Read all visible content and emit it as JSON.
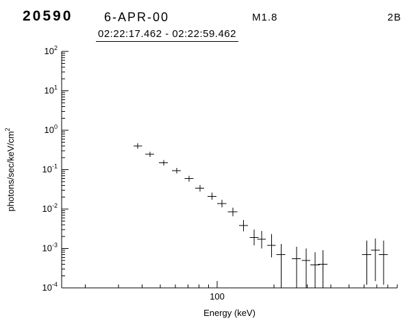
{
  "header": {
    "flare_number": "20590",
    "date": "6-APR-00",
    "xray_class": "M1.8",
    "optical_class": "2B",
    "time_range": "02:22:17.462  -  02:22:59.462"
  },
  "chart_data": {
    "type": "scatter",
    "subtype": "photon-spectrum-with-error-bars",
    "xlabel": "Energy (keV)",
    "ylabel_base": "photons/sec/keV/cm",
    "ylabel_exponent": "2",
    "x_scale": "log",
    "y_scale": "log",
    "xlim": [
      15,
      900
    ],
    "ylim": [
      0.0001,
      100
    ],
    "x_major_ticks": [
      100
    ],
    "x_major_tick_labels": [
      "100"
    ],
    "y_major_tick_exponents": [
      2,
      1,
      0,
      -1,
      -2,
      -3,
      -4
    ],
    "grid": false,
    "axis_color": "#000000",
    "marker_color": "#000000",
    "points": [
      {
        "e": 38,
        "de": 2,
        "f": 0.4,
        "flo": 0.34,
        "fhi": 0.47
      },
      {
        "e": 44,
        "de": 2.4,
        "f": 0.245,
        "flo": 0.21,
        "fhi": 0.285
      },
      {
        "e": 52,
        "de": 2.8,
        "f": 0.15,
        "flo": 0.128,
        "fhi": 0.175
      },
      {
        "e": 61,
        "de": 3.3,
        "f": 0.095,
        "flo": 0.081,
        "fhi": 0.111
      },
      {
        "e": 71,
        "de": 3.8,
        "f": 0.059,
        "flo": 0.05,
        "fhi": 0.07
      },
      {
        "e": 81,
        "de": 4.4,
        "f": 0.034,
        "flo": 0.028,
        "fhi": 0.041
      },
      {
        "e": 94,
        "de": 5,
        "f": 0.021,
        "flo": 0.017,
        "fhi": 0.026
      },
      {
        "e": 106,
        "de": 6,
        "f": 0.0138,
        "flo": 0.011,
        "fhi": 0.0172
      },
      {
        "e": 121,
        "de": 7,
        "f": 0.0085,
        "flo": 0.0066,
        "fhi": 0.0109
      },
      {
        "e": 138,
        "de": 7.5,
        "f": 0.0038,
        "flo": 0.0027,
        "fhi": 0.0053
      },
      {
        "e": 157,
        "de": 8.5,
        "f": 0.0019,
        "flo": 0.0012,
        "fhi": 0.003
      },
      {
        "e": 172,
        "de": 9,
        "f": 0.0017,
        "flo": 0.001,
        "fhi": 0.0028
      },
      {
        "e": 194,
        "de": 10,
        "f": 0.0012,
        "flo": 0.0006,
        "fhi": 0.0023
      },
      {
        "e": 218,
        "de": 12,
        "f": 0.0007,
        "flo": 0.0001,
        "fhi": 0.0013
      },
      {
        "e": 263,
        "de": 14,
        "f": 0.00055,
        "flo": 0.0001,
        "fhi": 0.0011
      },
      {
        "e": 296,
        "de": 16,
        "f": 0.0005,
        "flo": 0.0001,
        "fhi": 0.001
      },
      {
        "e": 330,
        "de": 18,
        "f": 0.00038,
        "flo": 0.0001,
        "fhi": 0.0008
      },
      {
        "e": 363,
        "de": 20,
        "f": 0.0004,
        "flo": 0.0001,
        "fhi": 0.0009
      },
      {
        "e": 620,
        "de": 34,
        "f": 0.0007,
        "flo": 0.00012,
        "fhi": 0.0016
      },
      {
        "e": 690,
        "de": 38,
        "f": 0.0009,
        "flo": 0.00015,
        "fhi": 0.0018
      },
      {
        "e": 760,
        "de": 42,
        "f": 0.0007,
        "flo": 0.00012,
        "fhi": 0.0016
      }
    ]
  }
}
